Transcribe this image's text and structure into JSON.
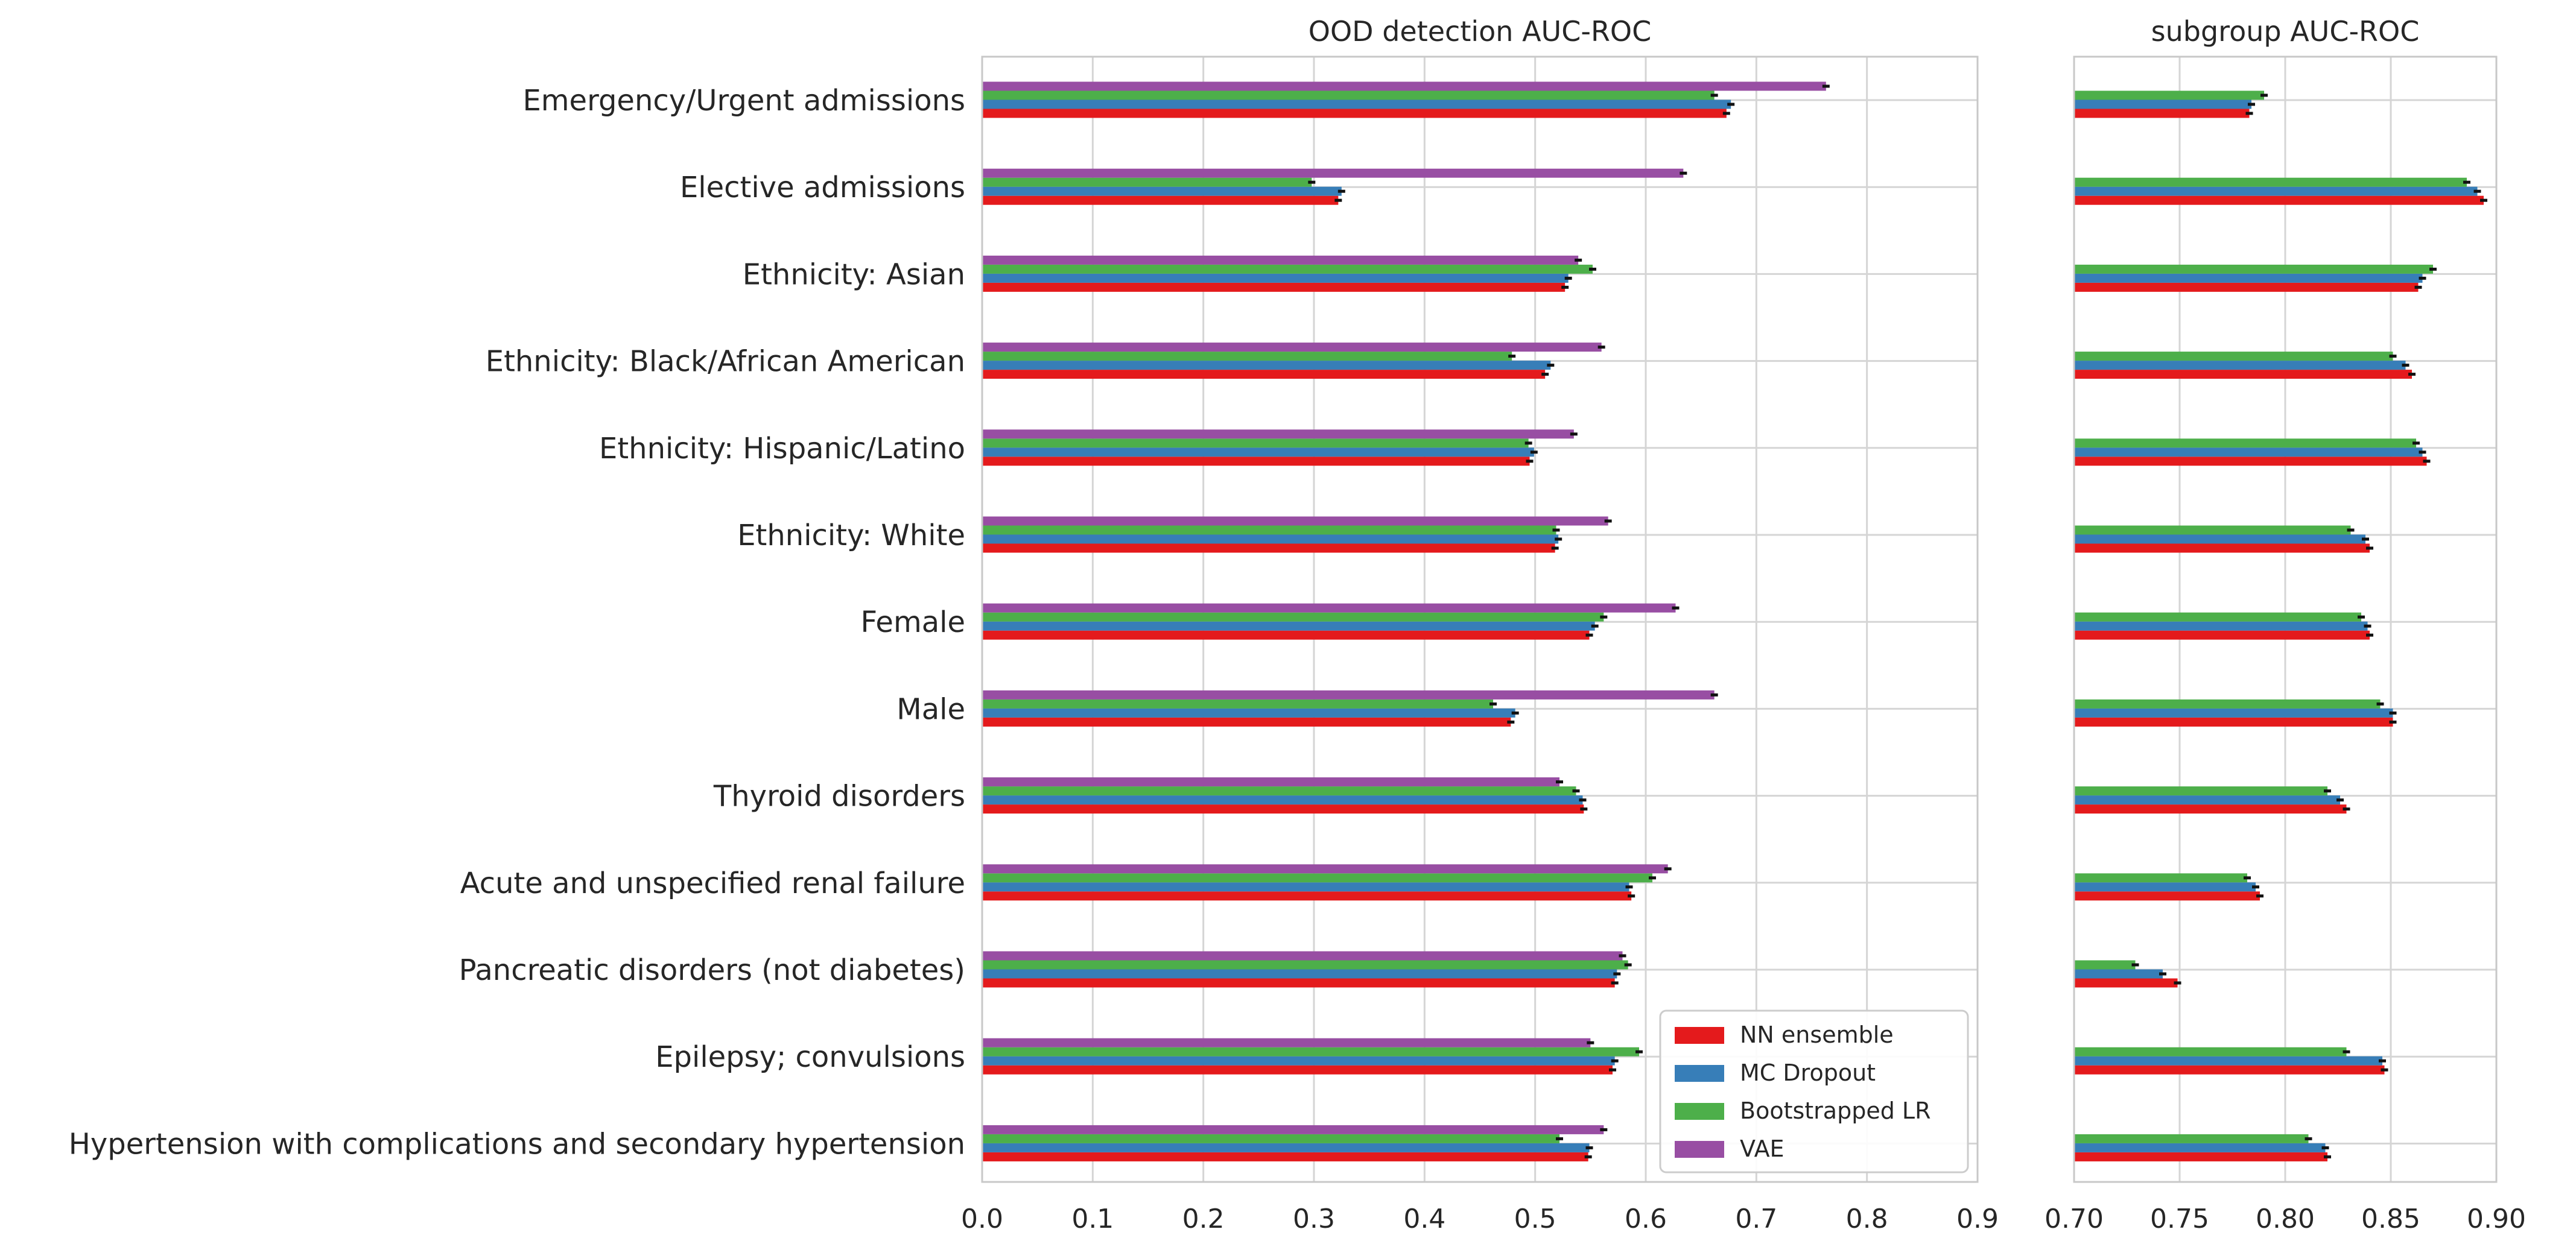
{
  "chart_data": [
    {
      "type": "bar",
      "orientation": "horizontal",
      "title": "OOD detection AUC-ROC",
      "xlabel": "",
      "ylabel": "",
      "xlim": [
        0.0,
        0.9
      ],
      "xticks": [
        "0.0",
        "0.1",
        "0.2",
        "0.3",
        "0.4",
        "0.5",
        "0.6",
        "0.7",
        "0.8",
        "0.9"
      ],
      "grid": true,
      "legend_position": "bottom-right",
      "categories": [
        "Emergency/Urgent admissions",
        "Elective admissions",
        "Ethnicity: Asian",
        "Ethnicity: Black/African American",
        "Ethnicity: Hispanic/Latino",
        "Ethnicity: White",
        "Female",
        "Male",
        "Thyroid disorders",
        "Acute and unspecified renal failure",
        "Pancreatic disorders (not diabetes)",
        "Epilepsy; convulsions",
        "Hypertension with complications and secondary hypertension"
      ],
      "series": [
        {
          "name": "NN ensemble",
          "color": "#e41a1c",
          "values": [
            0.673,
            0.322,
            0.527,
            0.509,
            0.495,
            0.518,
            0.549,
            0.478,
            0.544,
            0.587,
            0.572,
            0.57,
            0.548
          ]
        },
        {
          "name": "MC Dropout",
          "color": "#377eb8",
          "values": [
            0.677,
            0.325,
            0.53,
            0.514,
            0.499,
            0.521,
            0.554,
            0.482,
            0.543,
            0.585,
            0.574,
            0.572,
            0.549
          ]
        },
        {
          "name": "Bootstrapped LR",
          "color": "#4daf4a",
          "values": [
            0.662,
            0.298,
            0.552,
            0.479,
            0.494,
            0.519,
            0.562,
            0.462,
            0.537,
            0.606,
            0.584,
            0.594,
            0.522
          ]
        },
        {
          "name": "VAE",
          "color": "#984ea3",
          "values": [
            0.763,
            0.634,
            0.539,
            0.56,
            0.535,
            0.566,
            0.627,
            0.662,
            0.522,
            0.62,
            0.579,
            0.55,
            0.562
          ]
        }
      ]
    },
    {
      "type": "bar",
      "orientation": "horizontal",
      "title": "subgroup AUC-ROC",
      "xlabel": "",
      "ylabel": "",
      "xlim": [
        0.7,
        0.9
      ],
      "xticks": [
        "0.70",
        "0.75",
        "0.80",
        "0.85",
        "0.90"
      ],
      "grid": true,
      "categories": [
        "Emergency/Urgent admissions",
        "Elective admissions",
        "Ethnicity: Asian",
        "Ethnicity: Black/African American",
        "Ethnicity: Hispanic/Latino",
        "Ethnicity: White",
        "Female",
        "Male",
        "Thyroid disorders",
        "Acute and unspecified renal failure",
        "Pancreatic disorders (not diabetes)",
        "Epilepsy; convulsions",
        "Hypertension with complications and secondary hypertension"
      ],
      "series": [
        {
          "name": "NN ensemble",
          "color": "#e41a1c",
          "values": [
            0.783,
            0.894,
            0.863,
            0.86,
            0.867,
            0.84,
            0.84,
            0.851,
            0.829,
            0.788,
            0.749,
            0.847,
            0.82
          ]
        },
        {
          "name": "MC Dropout",
          "color": "#377eb8",
          "values": [
            0.784,
            0.891,
            0.865,
            0.857,
            0.865,
            0.838,
            0.839,
            0.851,
            0.826,
            0.786,
            0.742,
            0.846,
            0.819
          ]
        },
        {
          "name": "Bootstrapped LR",
          "color": "#4daf4a",
          "values": [
            0.79,
            0.886,
            0.87,
            0.851,
            0.862,
            0.831,
            0.836,
            0.845,
            0.82,
            0.782,
            0.729,
            0.829,
            0.811
          ]
        },
        {
          "name": "VAE",
          "color": "#984ea3",
          "values": [
            null,
            null,
            null,
            null,
            null,
            null,
            null,
            null,
            null,
            null,
            null,
            null,
            null
          ]
        }
      ]
    }
  ]
}
